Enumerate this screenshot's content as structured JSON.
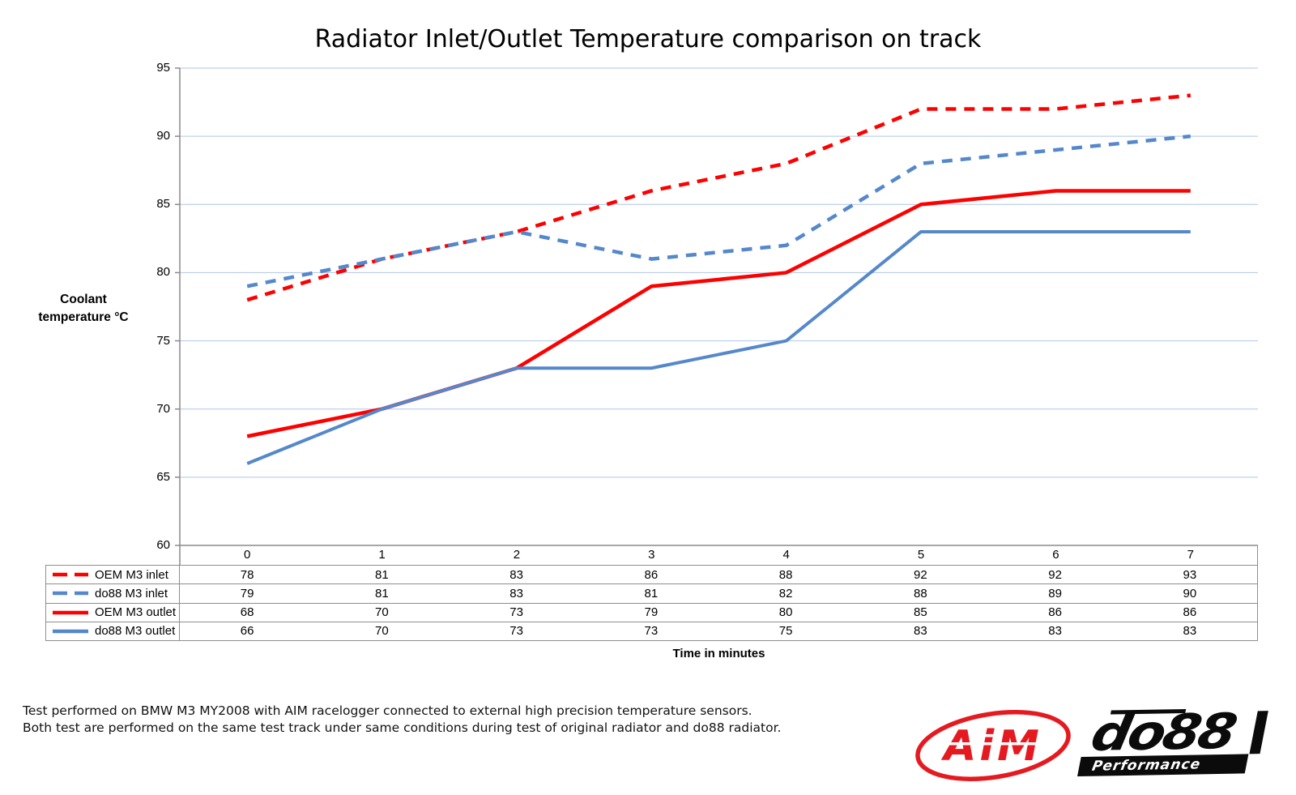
{
  "chart": {
    "title": "Radiator Inlet/Outlet Temperature comparison on track",
    "y_axis_title_line1": "Coolant",
    "y_axis_title_line2": "temperature °C",
    "x_axis_title": "Time in minutes"
  },
  "chart_data": {
    "type": "line",
    "title": "Radiator Inlet/Outlet Temperature comparison on track",
    "xlabel": "Time in minutes",
    "ylabel": "Coolant temperature °C",
    "categories": [
      "0",
      "1",
      "2",
      "3",
      "4",
      "5",
      "6",
      "7"
    ],
    "ylim": [
      60,
      95
    ],
    "yticks": [
      95,
      90,
      85,
      80,
      75,
      70,
      65,
      60
    ],
    "grid": "horizontal-major",
    "legend_position": "data-table-left-keys",
    "series": [
      {
        "name": "OEM M3 inlet",
        "values": [
          78,
          81,
          83,
          86,
          88,
          92,
          92,
          93
        ],
        "color": "#FE0000",
        "style": "dashed"
      },
      {
        "name": "do88 M3 inlet",
        "values": [
          79,
          81,
          83,
          81,
          82,
          88,
          89,
          90
        ],
        "color": "#5588CB",
        "style": "dashed"
      },
      {
        "name": "OEM M3 outlet",
        "values": [
          68,
          70,
          73,
          79,
          80,
          85,
          86,
          86
        ],
        "color": "#FE0000",
        "style": "solid"
      },
      {
        "name": "do88 M3 outlet",
        "values": [
          66,
          70,
          73,
          73,
          75,
          83,
          83,
          83
        ],
        "color": "#5588CB",
        "style": "solid"
      }
    ]
  },
  "colors": {
    "gridline": "#AEC6E8",
    "axis_gray": "#8A8A8A",
    "table_border": "#8E8E8E",
    "series_red": "#FE0000",
    "series_blue": "#5588CB",
    "aim_red": "#E51A20",
    "logo_black": "#0B0B0B"
  },
  "footnote": {
    "line1": "Test performed on BMW M3 MY2008 with AIM racelogger connected to external high precision temperature sensors.",
    "line2": "Both test are performed on the same test track under same conditions during test of original radiator and do88 radiator."
  },
  "logos": {
    "aim": {
      "text": "AiM"
    },
    "do88": {
      "text": "do88",
      "subtext": "Performance"
    }
  }
}
